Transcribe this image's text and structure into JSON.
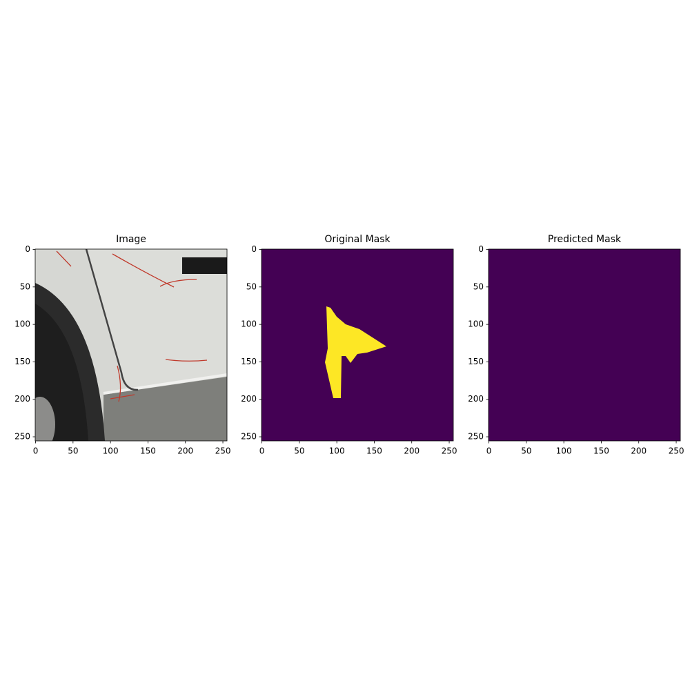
{
  "chart_data": [
    {
      "type": "image",
      "title": "Image",
      "xlim": [
        -0.5,
        255.5
      ],
      "ylim": [
        255.5,
        -0.5
      ],
      "xticks": [
        0,
        50,
        100,
        150,
        200,
        250
      ],
      "yticks": [
        0,
        50,
        100,
        150,
        200,
        250
      ]
    },
    {
      "type": "image",
      "title": "Original Mask",
      "xlim": [
        -0.5,
        255.5
      ],
      "ylim": [
        255.5,
        -0.5
      ],
      "xticks": [
        0,
        50,
        100,
        150,
        200,
        250
      ],
      "yticks": [
        0,
        50,
        100,
        150,
        200,
        250
      ]
    },
    {
      "type": "image",
      "title": "Predicted Mask",
      "xlim": [
        -0.5,
        255.5
      ],
      "ylim": [
        255.5,
        -0.5
      ],
      "xticks": [
        0,
        50,
        100,
        150,
        200,
        250
      ],
      "yticks": [
        0,
        50,
        100,
        150,
        200,
        250
      ]
    }
  ]
}
